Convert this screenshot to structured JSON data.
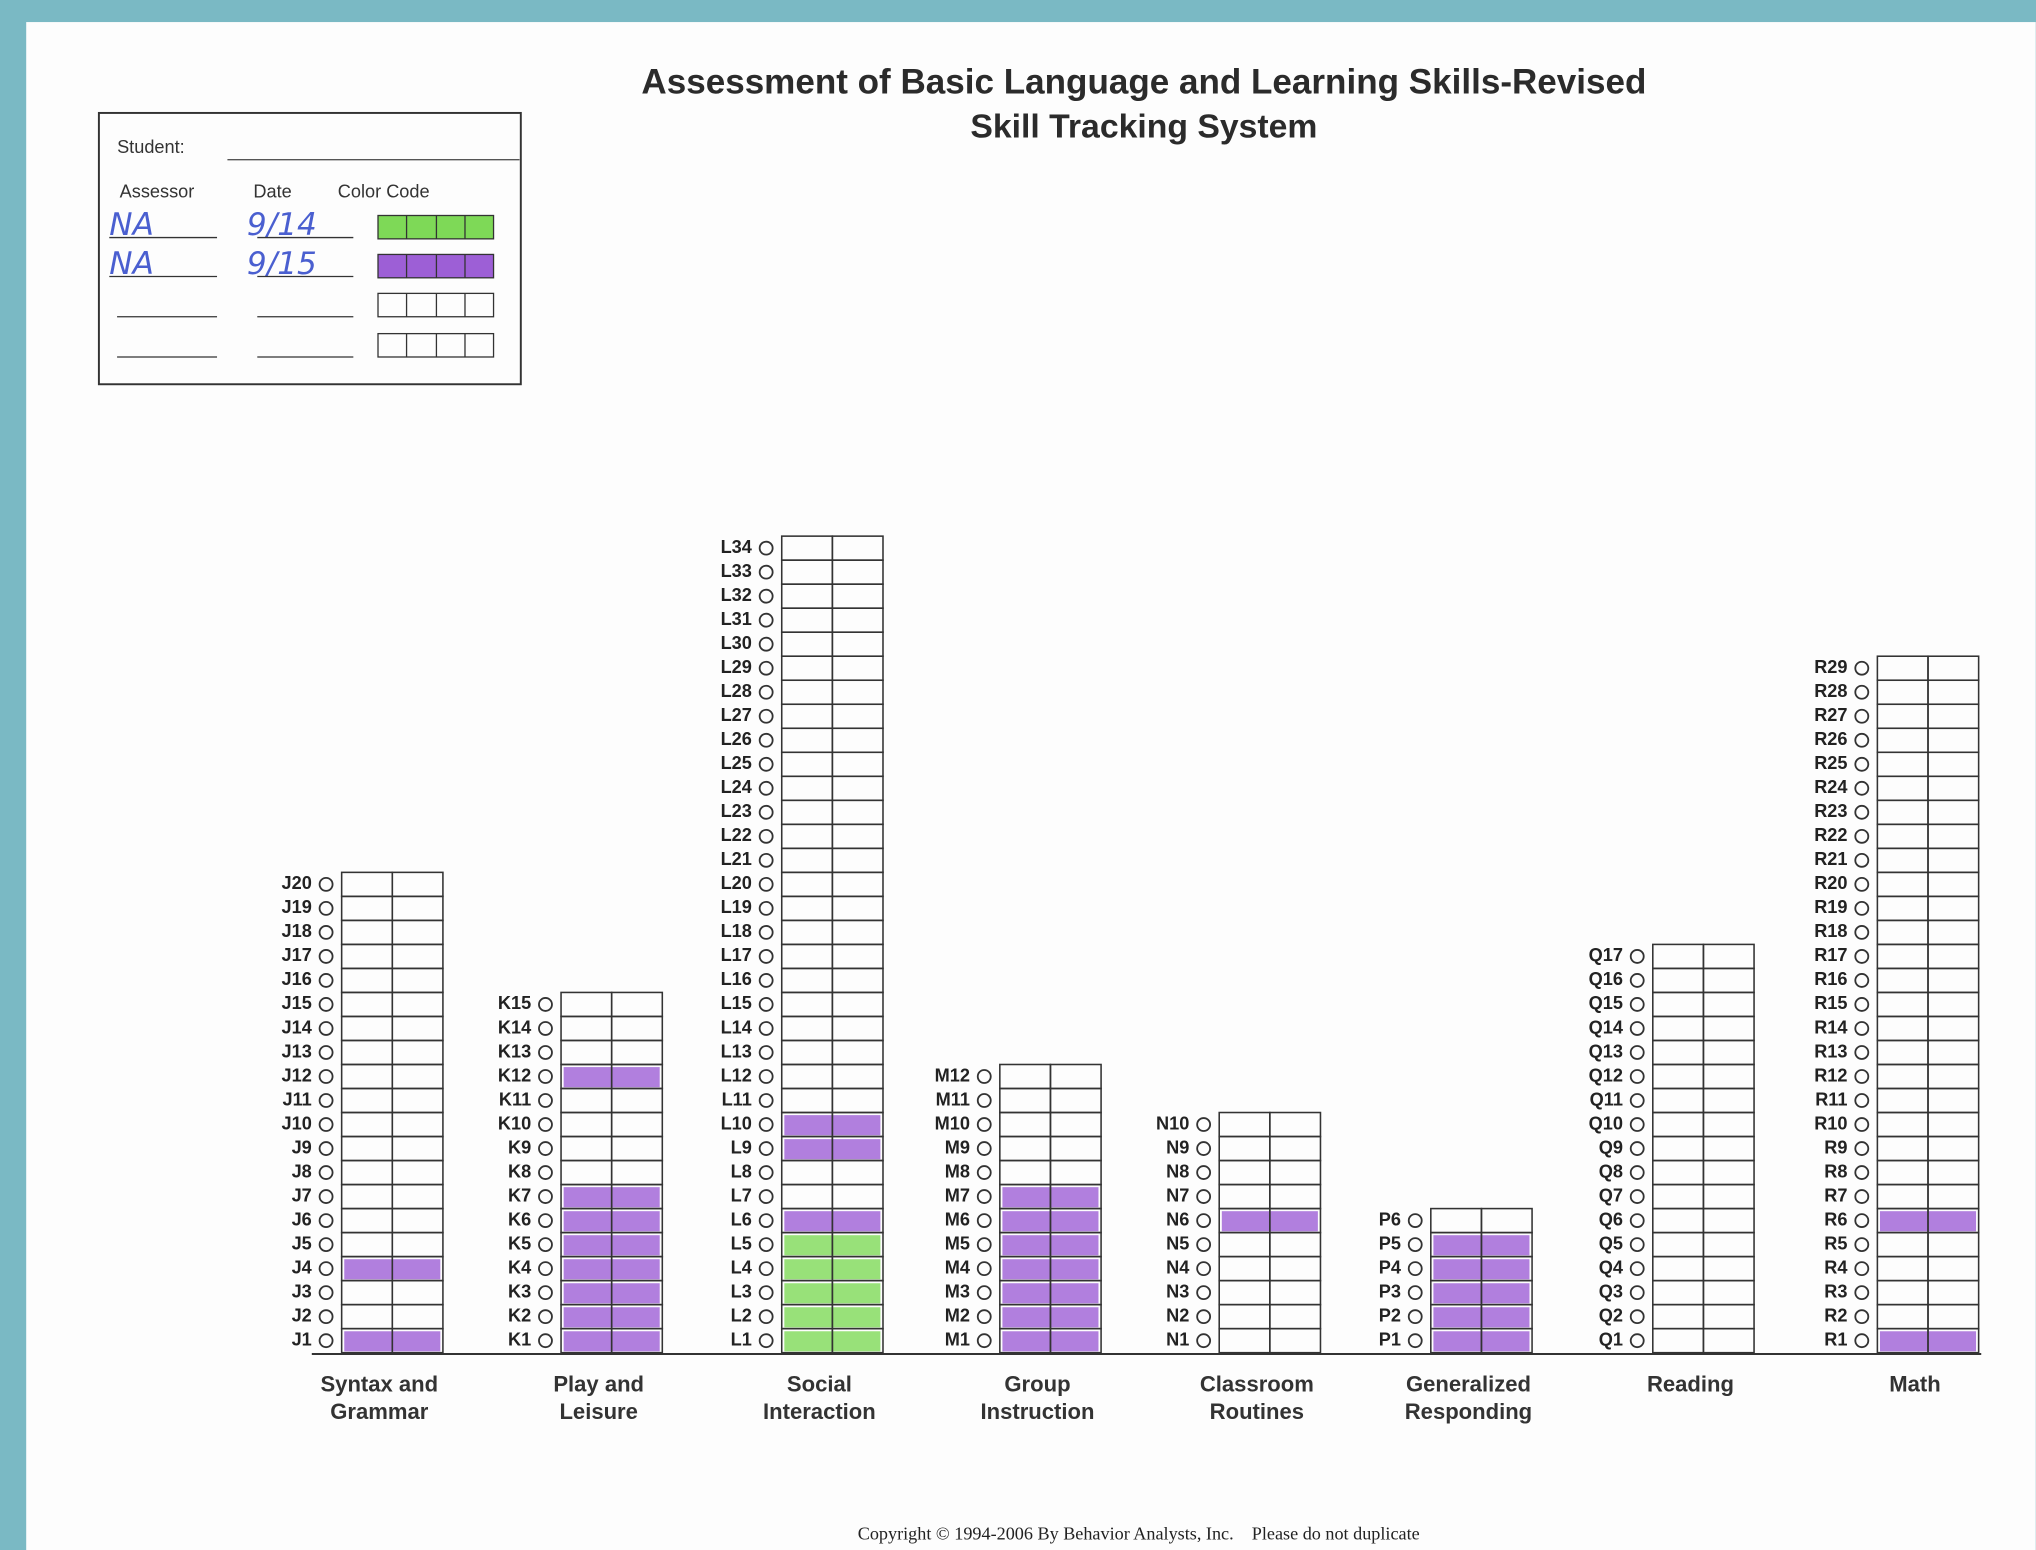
{
  "title": "Assessment of Basic Language and Learning Skills-Revised",
  "subtitle": "Skill Tracking System",
  "legend": {
    "student_label": "Student:",
    "headers": [
      "Assessor",
      "Date",
      "Color Code"
    ],
    "rows": [
      {
        "assessor": "NA",
        "date": "9/14",
        "color": "#7ed957"
      },
      {
        "assessor": "NA",
        "date": "9/15",
        "color": "#9d5fd6"
      }
    ]
  },
  "columns": [
    {
      "title": [
        "Syntax and",
        "Grammar"
      ],
      "skills": [
        "J1",
        "J2",
        "J3",
        "J4",
        "J5",
        "J6",
        "J7",
        "J8",
        "J9",
        "J10",
        "J11",
        "J12",
        "J13",
        "J14",
        "J15",
        "J16",
        "J17",
        "J18",
        "J19",
        "J20"
      ],
      "shading": [
        {
          "skills": [
            "J1",
            "J4"
          ],
          "color": "#9d5fd6"
        }
      ]
    },
    {
      "title": [
        "Play and",
        "Leisure"
      ],
      "skills": [
        "K1",
        "K2",
        "K3",
        "K4",
        "K5",
        "K6",
        "K7",
        "K8",
        "K9",
        "K10",
        "K11",
        "K12",
        "K13",
        "K14",
        "K15"
      ],
      "shading": [
        {
          "skills": [
            "K1",
            "K2",
            "K3",
            "K4",
            "K5",
            "K6",
            "K7",
            "K12"
          ],
          "color": "#9d5fd6"
        }
      ]
    },
    {
      "title": [
        "Social",
        "Interaction"
      ],
      "skills": [
        "L1",
        "L2",
        "L3",
        "L4",
        "L5",
        "L6",
        "L7",
        "L8",
        "L9",
        "L10",
        "L11",
        "L12",
        "L13",
        "L14",
        "L15",
        "L16",
        "L17",
        "L18",
        "L19",
        "L20",
        "L21",
        "L22",
        "L23",
        "L24",
        "L25",
        "L26",
        "L27",
        "L28",
        "L29",
        "L30",
        "L31",
        "L32",
        "L33",
        "L34"
      ],
      "shading": [
        {
          "skills": [
            "L1",
            "L2",
            "L3",
            "L4",
            "L5"
          ],
          "color": "#7ed957"
        },
        {
          "skills": [
            "L6",
            "L9",
            "L10"
          ],
          "color": "#9d5fd6"
        }
      ]
    },
    {
      "title": [
        "Group",
        "Instruction"
      ],
      "skills": [
        "M1",
        "M2",
        "M3",
        "M4",
        "M5",
        "M6",
        "M7",
        "M8",
        "M9",
        "M10",
        "M11",
        "M12"
      ],
      "shading": [
        {
          "skills": [
            "M1",
            "M2",
            "M3",
            "M4",
            "M5",
            "M6",
            "M7"
          ],
          "color": "#9d5fd6"
        }
      ]
    },
    {
      "title": [
        "Classroom",
        "Routines"
      ],
      "skills": [
        "N1",
        "N2",
        "N3",
        "N4",
        "N5",
        "N6",
        "N7",
        "N8",
        "N9",
        "N10"
      ],
      "shading": [
        {
          "skills": [
            "N6"
          ],
          "color": "#9d5fd6"
        }
      ]
    },
    {
      "title": [
        "Generalized",
        "Responding"
      ],
      "skills": [
        "P1",
        "P2",
        "P3",
        "P4",
        "P5",
        "P6"
      ],
      "shading": [
        {
          "skills": [
            "P1",
            "P2",
            "P3",
            "P4",
            "P5"
          ],
          "color": "#9d5fd6"
        }
      ]
    },
    {
      "title": [
        "Reading"
      ],
      "skills": [
        "Q1",
        "Q2",
        "Q3",
        "Q4",
        "Q5",
        "Q6",
        "Q7",
        "Q8",
        "Q9",
        "Q10",
        "Q11",
        "Q12",
        "Q13",
        "Q14",
        "Q15",
        "Q16",
        "Q17"
      ],
      "shading": []
    },
    {
      "title": [
        "Math"
      ],
      "skills": [
        "R1",
        "R2",
        "R3",
        "R4",
        "R5",
        "R6",
        "R7",
        "R8",
        "R9",
        "R10",
        "R11",
        "R12",
        "R13",
        "R14",
        "R15",
        "R16",
        "R17",
        "R18",
        "R19",
        "R20",
        "R21",
        "R22",
        "R23",
        "R24",
        "R25",
        "R26",
        "R27",
        "R28",
        "R29"
      ],
      "shading": [
        {
          "skills": [
            "R1",
            "R6"
          ],
          "color": "#9d5fd6"
        }
      ]
    }
  ],
  "copyright": "Copyright © 1994-2006 By Behavior Analysts, Inc.    Please do not duplicate"
}
